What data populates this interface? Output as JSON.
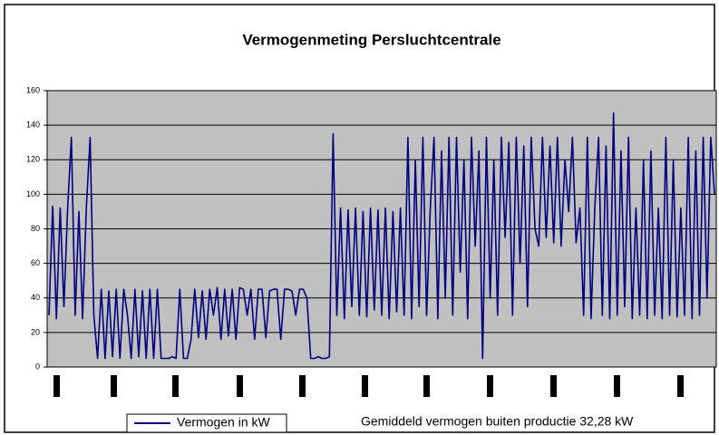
{
  "chart_data": {
    "type": "line",
    "title": "Vermogenmeting Persluchtcentrale",
    "annotation": "Gemiddeld vermogen buiten productie 32,28 kW",
    "ylim": [
      0,
      160
    ],
    "yticks": [
      0,
      20,
      40,
      60,
      80,
      100,
      120,
      140,
      160
    ],
    "grid": true,
    "series": [
      {
        "name": "Vermogen in kW",
        "color": "#000080",
        "values": [
          30,
          93,
          28,
          92,
          35,
          92,
          133,
          30,
          90,
          28,
          92,
          133,
          30,
          5,
          45,
          5,
          44,
          6,
          45,
          5,
          45,
          30,
          5,
          45,
          6,
          44,
          5,
          45,
          5,
          45,
          5,
          5,
          5,
          6,
          5,
          45,
          5,
          5,
          16,
          45,
          17,
          44,
          16,
          45,
          30,
          46,
          16,
          45,
          18,
          45,
          16,
          46,
          45,
          30,
          45,
          16,
          45,
          45,
          17,
          44,
          45,
          45,
          16,
          45,
          45,
          44,
          30,
          45,
          45,
          40,
          5,
          5,
          6,
          5,
          5,
          6,
          135,
          30,
          92,
          28,
          91,
          35,
          92,
          30,
          90,
          29,
          92,
          33,
          91,
          30,
          92,
          28,
          90,
          32,
          92,
          30,
          133,
          28,
          120,
          35,
          133,
          30,
          92,
          133,
          28,
          125,
          40,
          133,
          30,
          133,
          55,
          120,
          28,
          133,
          70,
          125,
          5,
          133,
          40,
          120,
          30,
          133,
          75,
          130,
          30,
          133,
          60,
          128,
          35,
          133,
          80,
          70,
          133,
          75,
          128,
          72,
          133,
          70,
          120,
          90,
          133,
          72,
          92,
          30,
          133,
          28,
          92,
          133,
          30,
          128,
          28,
          147,
          30,
          125,
          35,
          133,
          28,
          92,
          30,
          120,
          28,
          125,
          30,
          92,
          28,
          133,
          30,
          120,
          29,
          92,
          30,
          133,
          28,
          125,
          30,
          133,
          40,
          133,
          100
        ]
      }
    ]
  }
}
